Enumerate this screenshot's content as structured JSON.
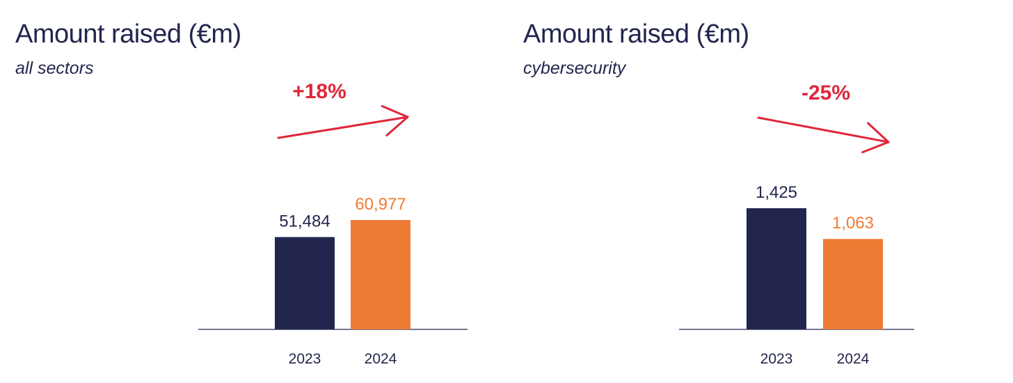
{
  "colors": {
    "text_dark": "#22264d",
    "bar_2023": "#22264d",
    "bar_2024": "#ee7b34",
    "change_arrow": "#e0263a",
    "baseline": "#22264d"
  },
  "chart_data": [
    {
      "type": "bar",
      "title": "Amount raised (€m)",
      "subtitle": "all sectors",
      "categories": [
        "2023",
        "2024"
      ],
      "values": [
        51484,
        60977
      ],
      "value_labels": [
        "51,484",
        "60,977"
      ],
      "change_label": "+18%",
      "change_direction": "up",
      "ylim": [
        0,
        60977
      ],
      "grid": false,
      "legend": "none"
    },
    {
      "type": "bar",
      "title": "Amount raised (€m)",
      "subtitle": "cybersecurity",
      "categories": [
        "2023",
        "2024"
      ],
      "values": [
        1425,
        1063
      ],
      "value_labels": [
        "1,425",
        "1,063"
      ],
      "change_label": "-25%",
      "change_direction": "down",
      "ylim": [
        0,
        1425
      ],
      "grid": false,
      "legend": "none"
    }
  ]
}
